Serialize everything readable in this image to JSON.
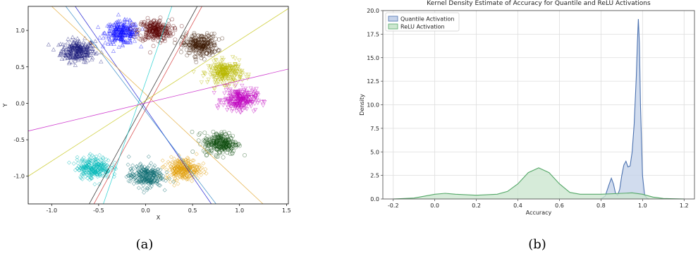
{
  "captions": {
    "a": "(a)",
    "b": "(b)"
  },
  "chart_data": [
    {
      "type": "scatter",
      "xlabel": "X",
      "ylabel": "Y",
      "xlim": [
        -1.25,
        1.52
      ],
      "ylim": [
        -1.38,
        1.33
      ],
      "xticks": [
        "-1.0",
        "-0.5",
        "0.0",
        "0.5",
        "1.0",
        "1.5"
      ],
      "xtick_values": [
        -1.0,
        -0.5,
        0.0,
        0.5,
        1.0,
        1.5
      ],
      "yticks": [
        "-1.0",
        "-0.5",
        "0.0",
        "0.5",
        "1.0"
      ],
      "ytick_values": [
        -1.0,
        -0.5,
        0.0,
        0.5,
        1.0
      ],
      "grid": false,
      "clusters": [
        {
          "color": "#1a1a7a",
          "center": [
            -0.72,
            0.72
          ],
          "marker": "triangle-up"
        },
        {
          "color": "#1010ff",
          "center": [
            -0.25,
            0.97
          ],
          "marker": "triangle-up"
        },
        {
          "color": "#5a0000",
          "center": [
            0.1,
            1.0
          ],
          "marker": "circle"
        },
        {
          "color": "#3a1800",
          "center": [
            0.58,
            0.8
          ],
          "marker": "circle"
        },
        {
          "color": "#b8b800",
          "center": [
            0.85,
            0.42
          ],
          "marker": "triangle-down"
        },
        {
          "color": "#c000c0",
          "center": [
            1.0,
            0.05
          ],
          "marker": "triangle-down"
        },
        {
          "color": "#0b4a0b",
          "center": [
            0.8,
            -0.55
          ],
          "marker": "circle"
        },
        {
          "color": "#e09a00",
          "center": [
            0.4,
            -0.9
          ],
          "marker": "diamond"
        },
        {
          "color": "#0a6a70",
          "center": [
            0.0,
            -1.0
          ],
          "marker": "diamond"
        },
        {
          "color": "#00b8b8",
          "center": [
            -0.55,
            -0.88
          ],
          "marker": "diamond"
        }
      ],
      "lines": [
        {
          "color": "#0000cc",
          "x": [
            -0.75,
            0.7
          ],
          "y": [
            1.33,
            -1.38
          ]
        },
        {
          "color": "#1a7ac0",
          "x": [
            -0.85,
            0.75
          ],
          "y": [
            1.33,
            -1.38
          ]
        },
        {
          "color": "#e0a020",
          "x": [
            -1.0,
            1.25
          ],
          "y": [
            1.33,
            -1.38
          ]
        },
        {
          "color": "#000000",
          "x": [
            -0.6,
            0.55
          ],
          "y": [
            -1.38,
            1.33
          ]
        },
        {
          "color": "#d02020",
          "x": [
            -0.55,
            0.6
          ],
          "y": [
            -1.38,
            1.33
          ]
        },
        {
          "color": "#00c8c8",
          "x": [
            -0.45,
            0.28
          ],
          "y": [
            -1.38,
            1.33
          ]
        },
        {
          "color": "#c0c000",
          "x": [
            -1.25,
            1.52
          ],
          "y": [
            -1.0,
            1.3
          ]
        },
        {
          "color": "#c000c0",
          "x": [
            -1.25,
            1.52
          ],
          "y": [
            -0.38,
            0.47
          ]
        }
      ]
    },
    {
      "type": "area",
      "title": "Kernel Density Estimate of Accuracy for Quantile and ReLU Activations",
      "xlabel": "Accuracy",
      "ylabel": "Density",
      "xlim": [
        -0.25,
        1.25
      ],
      "ylim": [
        0,
        20.0
      ],
      "xticks": [
        "-0.2",
        "0.0",
        "0.2",
        "0.4",
        "0.6",
        "0.8",
        "1.0",
        "1.2"
      ],
      "xtick_values": [
        -0.2,
        0.0,
        0.2,
        0.4,
        0.6,
        0.8,
        1.0,
        1.2
      ],
      "yticks": [
        "0.0",
        "2.5",
        "5.0",
        "7.5",
        "10.0",
        "12.5",
        "15.0",
        "17.5",
        "20.0"
      ],
      "ytick_values": [
        0.0,
        2.5,
        5.0,
        7.5,
        10.0,
        12.5,
        15.0,
        17.5,
        20.0
      ],
      "grid": true,
      "legend_position": "top-left",
      "series": [
        {
          "name": "Quantile Activation",
          "color": "#4c72b0",
          "fill": "#c6d3ea",
          "x": [
            0.8,
            0.82,
            0.84,
            0.85,
            0.86,
            0.87,
            0.88,
            0.89,
            0.9,
            0.91,
            0.92,
            0.93,
            0.94,
            0.95,
            0.96,
            0.97,
            0.975,
            0.98,
            0.985,
            0.99,
            1.0,
            1.01,
            1.02,
            1.03
          ],
          "y": [
            0.0,
            0.3,
            1.6,
            2.2,
            1.6,
            0.6,
            0.4,
            1.0,
            2.5,
            3.6,
            4.0,
            3.4,
            3.5,
            5.0,
            8.0,
            13.0,
            16.5,
            19.1,
            16.5,
            10.0,
            2.5,
            0.4,
            0.1,
            0.0
          ]
        },
        {
          "name": "ReLU Activation",
          "color": "#55a868",
          "fill": "#cce6cf",
          "x": [
            -0.2,
            -0.1,
            0.0,
            0.05,
            0.1,
            0.2,
            0.3,
            0.35,
            0.4,
            0.45,
            0.5,
            0.55,
            0.6,
            0.65,
            0.7,
            0.8,
            0.9,
            0.95,
            1.0,
            1.05,
            1.1,
            1.2
          ],
          "y": [
            0.0,
            0.1,
            0.5,
            0.6,
            0.5,
            0.4,
            0.5,
            0.8,
            1.6,
            2.8,
            3.3,
            2.8,
            1.6,
            0.7,
            0.5,
            0.5,
            0.6,
            0.65,
            0.5,
            0.2,
            0.05,
            0.0
          ]
        }
      ]
    }
  ]
}
